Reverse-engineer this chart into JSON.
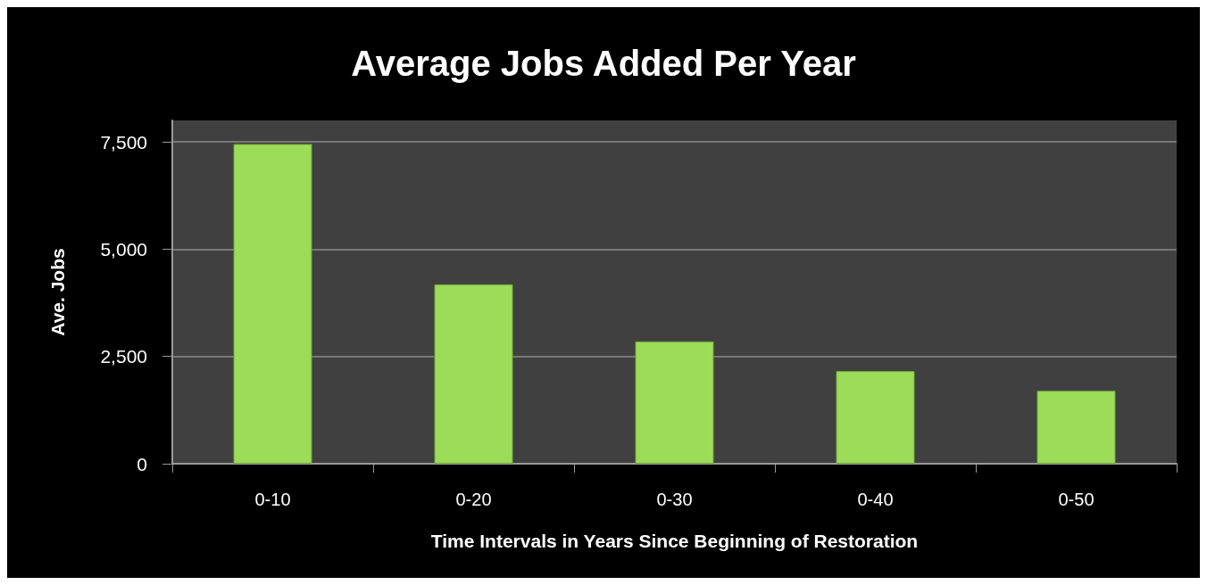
{
  "chart_data": {
    "type": "bar",
    "title": "Average Jobs Added Per Year",
    "xlabel": "Time Intervals in Years Since Beginning of Restoration",
    "ylabel": "Ave. Jobs",
    "categories": [
      "0-10",
      "0-20",
      "0-30",
      "0-40",
      "0-50"
    ],
    "values": [
      7450,
      4180,
      2850,
      2160,
      1700
    ],
    "color": "#9cdc58",
    "ylim": [
      0,
      8000
    ],
    "yticks": [
      0,
      {
        "value": 2500,
        "label": "2,500"
      },
      {
        "value": 5000,
        "label": "5,000"
      },
      {
        "value": 7500,
        "label": "7,500"
      }
    ],
    "grid": "y"
  }
}
